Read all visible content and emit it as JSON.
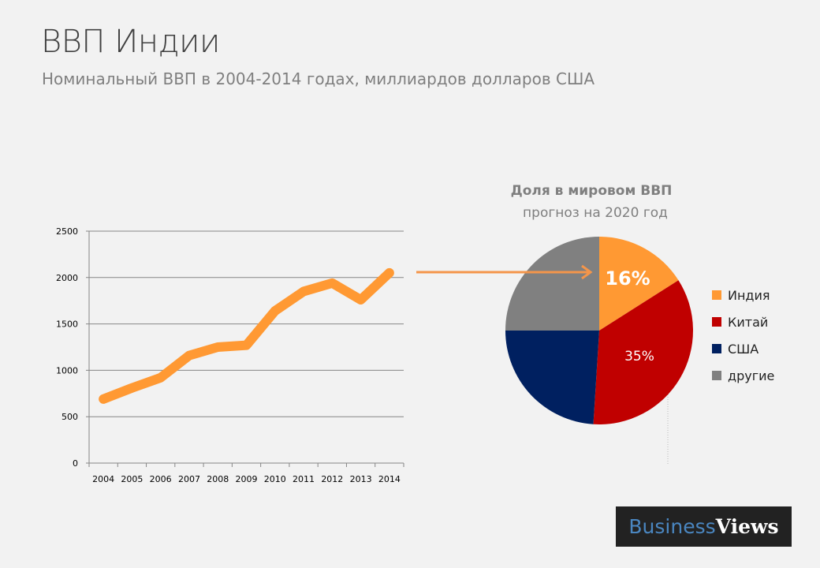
{
  "header": {
    "title": "ВВП Индии",
    "subtitle": "Номинальный ВВП в 2004-2014 годах, миллиардов долларов США"
  },
  "chart_data": [
    {
      "type": "line",
      "title": "",
      "xlabel": "",
      "ylabel": "",
      "categories": [
        "2004",
        "2005",
        "2006",
        "2007",
        "2008",
        "2009",
        "2010",
        "2011",
        "2012",
        "2013",
        "2014"
      ],
      "values": [
        690,
        810,
        920,
        1160,
        1250,
        1270,
        1640,
        1850,
        1940,
        1760,
        2050
      ],
      "ylim": [
        0,
        2500
      ],
      "yticks": [
        "0",
        "500",
        "1000",
        "1500",
        "2000",
        "2500"
      ],
      "grid": true,
      "color": "#ff9933"
    },
    {
      "type": "pie",
      "title": "Доля в мировом ВВП",
      "subtitle": "прогноз на 2020 год",
      "slices": [
        {
          "name": "Индия",
          "value": 16,
          "label": "16%",
          "color": "#ff9933"
        },
        {
          "name": "Китай",
          "value": 35,
          "label": "35%",
          "color": "#c00000"
        },
        {
          "name": "США",
          "value": 24,
          "label": "",
          "color": "#002060"
        },
        {
          "name": "другие",
          "value": 25,
          "label": "",
          "color": "#808080"
        }
      ],
      "legend": "right"
    }
  ],
  "logo": {
    "part1": "Business",
    "part2": "Views"
  }
}
